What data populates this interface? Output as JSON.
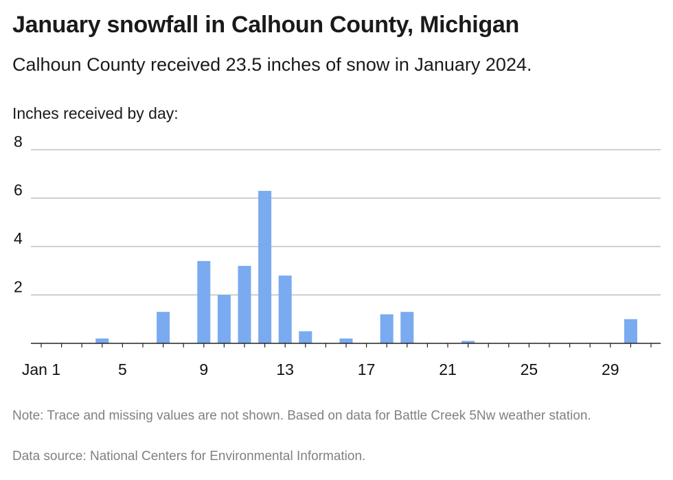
{
  "title": "January snowfall in Calhoun County, Michigan",
  "subtitle": "Calhoun County received 23.5 inches of snow in January 2024.",
  "y_axis_heading": "Inches received by day:",
  "note": "Note: Trace and missing values are not shown. Based on data for Battle Creek 5Nw weather station.",
  "source": "Data source: National Centers for Environmental Information.",
  "colors": {
    "bar": "#7aaaf0",
    "grid": "#b3b3b3",
    "axis": "#222222",
    "note": "#808080"
  },
  "chart_data": {
    "type": "bar",
    "title": "January snowfall in Calhoun County, Michigan",
    "ylabel": "Inches received by day:",
    "xlabel": "",
    "ylim": [
      0,
      8
    ],
    "yticks": [
      2,
      4,
      6,
      8
    ],
    "xticks": [
      {
        "day": 1,
        "label": "Jan 1"
      },
      {
        "day": 5,
        "label": "5"
      },
      {
        "day": 9,
        "label": "9"
      },
      {
        "day": 13,
        "label": "13"
      },
      {
        "day": 17,
        "label": "17"
      },
      {
        "day": 21,
        "label": "21"
      },
      {
        "day": 25,
        "label": "25"
      },
      {
        "day": 29,
        "label": "29"
      }
    ],
    "grid": true,
    "days": [
      4,
      7,
      9,
      10,
      11,
      12,
      13,
      14,
      16,
      18,
      19,
      22,
      30
    ],
    "values": [
      0.2,
      1.3,
      3.4,
      2.0,
      3.2,
      6.3,
      2.8,
      0.5,
      0.2,
      1.2,
      1.3,
      0.1,
      1.0
    ]
  }
}
